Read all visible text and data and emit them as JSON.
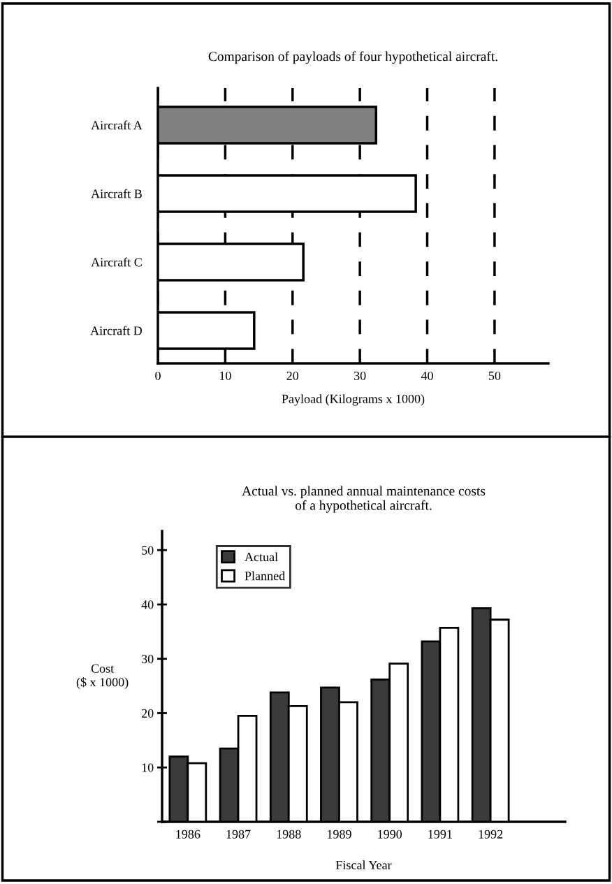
{
  "chart_data": [
    {
      "type": "bar",
      "orientation": "horizontal",
      "title": "Comparison of payloads of four hypothetical aircraft.",
      "xlabel": "Payload (Kilograms x 1000)",
      "categories": [
        "Aircraft A",
        "Aircraft B",
        "Aircraft C",
        "Aircraft D"
      ],
      "values": [
        32.4,
        38.3,
        21.6,
        14.3
      ],
      "colors": [
        "#808080",
        "#ffffff",
        "#ffffff",
        "#ffffff"
      ],
      "xlim": [
        0,
        58
      ],
      "xticks": [
        0,
        10,
        20,
        30,
        40,
        50
      ],
      "grid": "x",
      "line_style": "dashed"
    },
    {
      "type": "bar",
      "title": "Actual vs. planned annual maintenance costs\nof a hypothetical aircraft.",
      "xlabel": "Fiscal Year",
      "ylabel": "Cost\n($ x 1000)",
      "categories": [
        "1986",
        "1987",
        "1988",
        "1989",
        "1990",
        "1991",
        "1992"
      ],
      "series": [
        {
          "name": "Actual",
          "color": "#3a3a3a",
          "values": [
            12.0,
            13.5,
            23.8,
            24.7,
            26.2,
            33.2,
            39.3
          ]
        },
        {
          "name": "Planned",
          "color": "#ffffff",
          "values": [
            10.8,
            19.5,
            21.3,
            22.0,
            29.1,
            35.7,
            37.2
          ]
        }
      ],
      "ylim": [
        0,
        53.5
      ],
      "yticks": [
        {
          "value": 0,
          "label": null
        },
        10,
        20,
        30,
        40,
        50
      ],
      "legend": "top left",
      "grid": false
    }
  ]
}
